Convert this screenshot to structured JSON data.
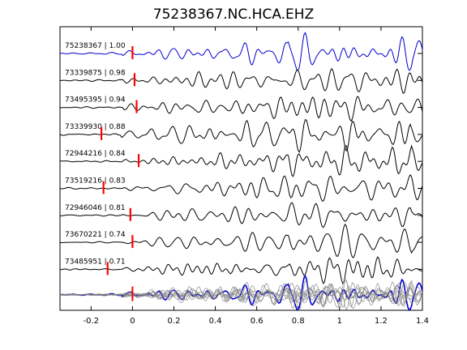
{
  "chart_data": {
    "type": "line",
    "title": "75238367.NC.HCA.EHZ",
    "xlabel": "",
    "ylabel": "",
    "xlim": [
      -0.35,
      1.4
    ],
    "xticks": [
      -0.2,
      0,
      0.2,
      0.4,
      0.6,
      0.8,
      1,
      1.2,
      1.4
    ],
    "xtick_labels": [
      "-0.2",
      "0",
      "0.2",
      "0.4",
      "0.6",
      "0.8",
      "1",
      "1.2",
      "1.4"
    ],
    "grid": false,
    "colors": {
      "reference": "#0000cc",
      "trace": "#000000",
      "pick": "#ff0000",
      "stack": "#808080"
    },
    "traces": [
      {
        "label": "75238367 | 1.00",
        "pick_time": 0.0,
        "reference": true
      },
      {
        "label": "73339875 | 0.98",
        "pick_time": 0.01,
        "reference": false
      },
      {
        "label": "73495395 | 0.94",
        "pick_time": 0.02,
        "reference": false
      },
      {
        "label": "73339930 | 0.88",
        "pick_time": -0.15,
        "reference": false
      },
      {
        "label": "72944216 | 0.84",
        "pick_time": 0.03,
        "reference": false
      },
      {
        "label": "73519216 | 0.83",
        "pick_time": -0.14,
        "reference": false
      },
      {
        "label": "72946046 | 0.81",
        "pick_time": -0.01,
        "reference": false
      },
      {
        "label": "73670221 | 0.74",
        "pick_time": 0.0,
        "reference": false
      },
      {
        "label": "73485951 | 0.71",
        "pick_time": -0.12,
        "reference": false
      }
    ],
    "stack": {
      "label": "",
      "description": "overlay of all traces"
    }
  }
}
